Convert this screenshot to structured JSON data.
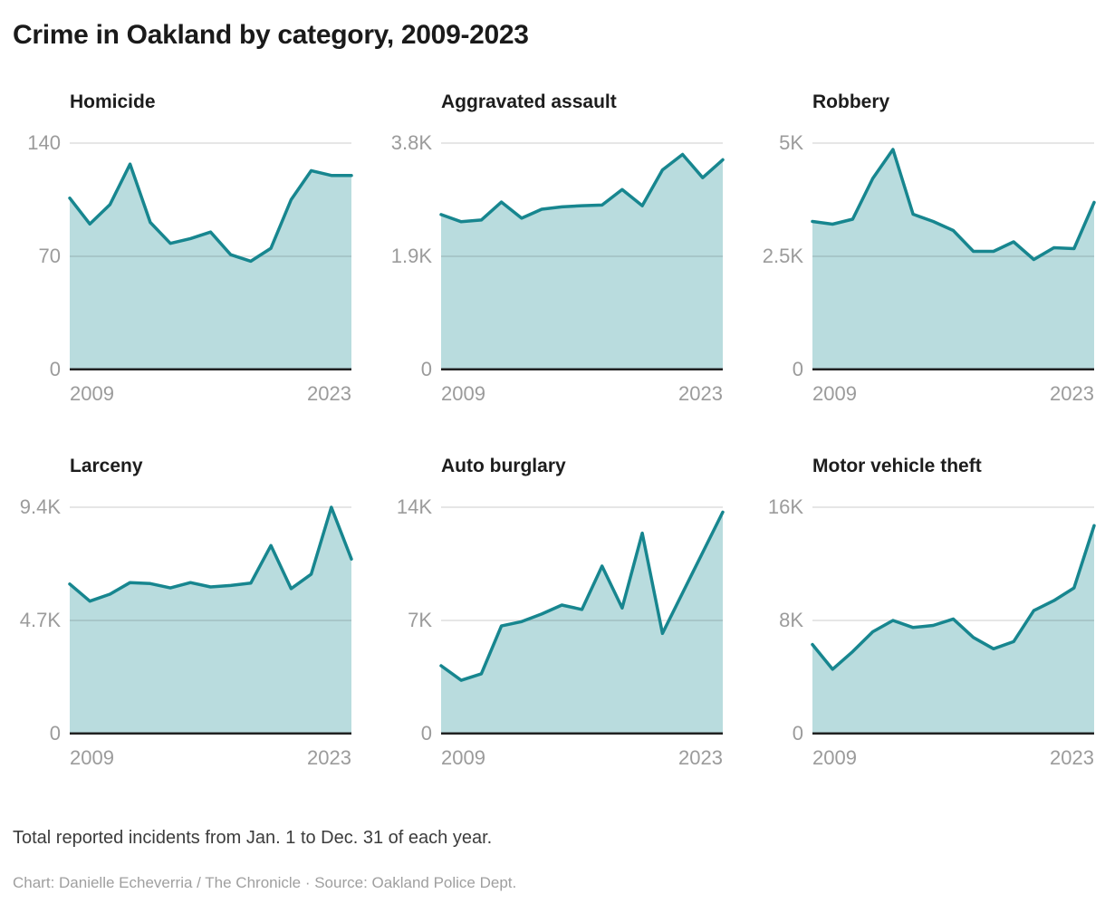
{
  "page": {
    "title": "Crime in Oakland by category, 2009-2023",
    "note": "Total reported incidents from Jan. 1 to Dec. 31 of each year.",
    "credit": "Chart: Danielle Echeverria / The Chronicle · Source: Oakland Police Dept."
  },
  "colors": {
    "line": "#17868f",
    "fill": "#b9dcde",
    "gridline": "rgba(0,0,0,0.13)",
    "baseline": "#212121",
    "tick_label": "#9b9b9b"
  },
  "chart_data": [
    {
      "type": "area",
      "title": "Homicide",
      "slug": "homicide",
      "x": [
        2009,
        2010,
        2011,
        2012,
        2013,
        2014,
        2015,
        2016,
        2017,
        2018,
        2019,
        2020,
        2021,
        2022,
        2023
      ],
      "values": [
        106,
        90,
        102,
        127,
        91,
        78,
        81,
        85,
        71,
        67,
        75,
        105,
        123,
        120,
        120
      ],
      "ylim": [
        0,
        140
      ],
      "grid": true,
      "legend": "none",
      "yticks": [
        {
          "value": 0,
          "label": "0"
        },
        {
          "value": 70,
          "label": "70"
        },
        {
          "value": 140,
          "label": "140"
        }
      ],
      "xtick_labels": [
        "2009",
        "2023"
      ]
    },
    {
      "type": "area",
      "title": "Aggravated assault",
      "slug": "aggravated-assault",
      "x": [
        2009,
        2010,
        2011,
        2012,
        2013,
        2014,
        2015,
        2016,
        2017,
        2018,
        2019,
        2020,
        2021,
        2022,
        2023
      ],
      "values": [
        2600,
        2480,
        2510,
        2810,
        2540,
        2690,
        2730,
        2750,
        2760,
        3020,
        2750,
        3350,
        3610,
        3220,
        3520
      ],
      "ylim": [
        0,
        3800
      ],
      "grid": true,
      "legend": "none",
      "yticks": [
        {
          "value": 0,
          "label": "0"
        },
        {
          "value": 1900,
          "label": "1.9K"
        },
        {
          "value": 3800,
          "label": "3.8K"
        }
      ],
      "xtick_labels": [
        "2009",
        "2023"
      ]
    },
    {
      "type": "area",
      "title": "Robbery",
      "slug": "robbery",
      "x": [
        2009,
        2010,
        2011,
        2012,
        2013,
        2014,
        2015,
        2016,
        2017,
        2018,
        2019,
        2020,
        2021,
        2022,
        2023
      ],
      "values": [
        3270,
        3210,
        3320,
        4220,
        4860,
        3430,
        3270,
        3070,
        2610,
        2610,
        2820,
        2430,
        2690,
        2670,
        3690
      ],
      "ylim": [
        0,
        5000
      ],
      "grid": true,
      "legend": "none",
      "yticks": [
        {
          "value": 0,
          "label": "0"
        },
        {
          "value": 2500,
          "label": "2.5K"
        },
        {
          "value": 5000,
          "label": "5K"
        }
      ],
      "xtick_labels": [
        "2009",
        "2023"
      ]
    },
    {
      "type": "area",
      "title": "Larceny",
      "slug": "larceny",
      "x": [
        2009,
        2010,
        2011,
        2012,
        2013,
        2014,
        2015,
        2016,
        2017,
        2018,
        2019,
        2020,
        2021,
        2022,
        2023
      ],
      "values": [
        6210,
        5500,
        5790,
        6270,
        6230,
        6050,
        6270,
        6090,
        6150,
        6250,
        7810,
        6020,
        6620,
        9400,
        7250
      ],
      "ylim": [
        0,
        9400
      ],
      "grid": true,
      "legend": "none",
      "yticks": [
        {
          "value": 0,
          "label": "0"
        },
        {
          "value": 4700,
          "label": "4.7K"
        },
        {
          "value": 9400,
          "label": "9.4K"
        }
      ],
      "xtick_labels": [
        "2009",
        "2023"
      ]
    },
    {
      "type": "area",
      "title": "Auto burglary",
      "slug": "auto-burglary",
      "x": [
        2009,
        2010,
        2011,
        2012,
        2013,
        2014,
        2015,
        2016,
        2017,
        2018,
        2019,
        2020,
        2021,
        2022,
        2023
      ],
      "values": [
        4200,
        3300,
        3700,
        6660,
        6930,
        7400,
        7950,
        7680,
        10360,
        7770,
        12400,
        6200,
        8700,
        11200,
        13700
      ],
      "ylim": [
        0,
        14000
      ],
      "grid": true,
      "legend": "none",
      "yticks": [
        {
          "value": 0,
          "label": "0"
        },
        {
          "value": 7000,
          "label": "7K"
        },
        {
          "value": 14000,
          "label": "14K"
        }
      ],
      "xtick_labels": [
        "2009",
        "2023"
      ]
    },
    {
      "type": "area",
      "title": "Motor vehicle theft",
      "slug": "motor-vehicle-theft",
      "x": [
        2009,
        2010,
        2011,
        2012,
        2013,
        2014,
        2015,
        2016,
        2017,
        2018,
        2019,
        2020,
        2021,
        2022,
        2023
      ],
      "values": [
        6300,
        4550,
        5800,
        7200,
        8000,
        7500,
        7650,
        8100,
        6800,
        6000,
        6500,
        8700,
        9400,
        10300,
        14700
      ],
      "ylim": [
        0,
        16000
      ],
      "grid": true,
      "legend": "none",
      "yticks": [
        {
          "value": 0,
          "label": "0"
        },
        {
          "value": 8000,
          "label": "8K"
        },
        {
          "value": 16000,
          "label": "16K"
        }
      ],
      "xtick_labels": [
        "2009",
        "2023"
      ]
    }
  ]
}
